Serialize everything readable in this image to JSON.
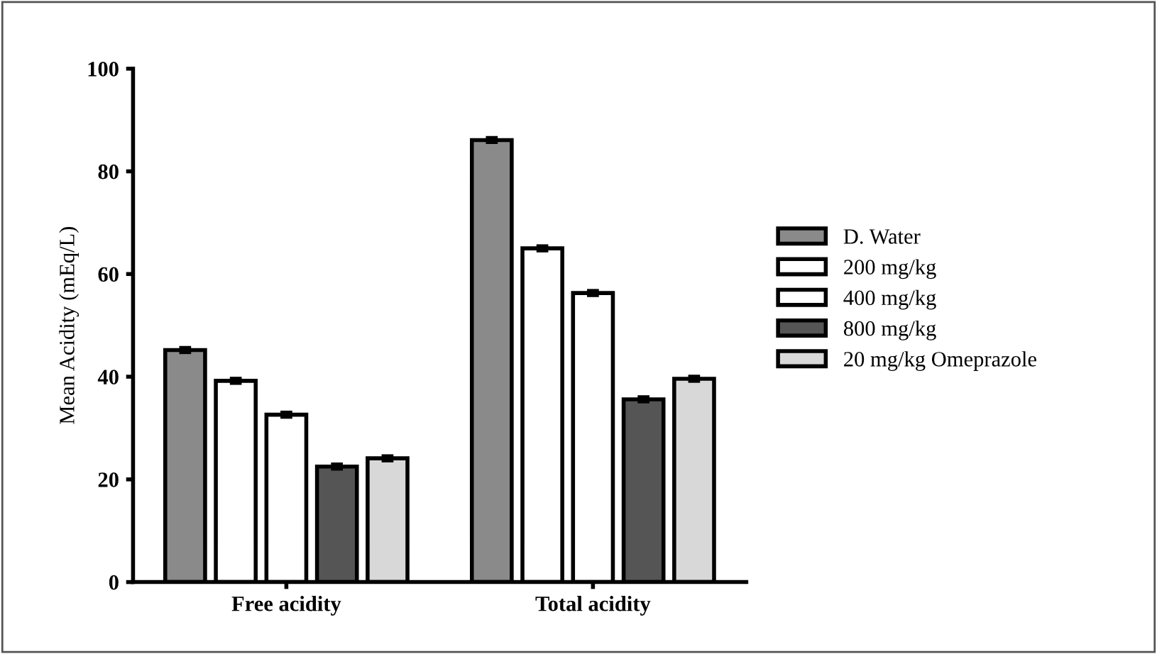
{
  "chart_data": {
    "type": "bar",
    "ylabel": "Mean Acidity (mEq/L)",
    "categories": [
      "Free acidity",
      "Total acidity"
    ],
    "series": [
      {
        "name": "D. Water",
        "color": "#8a8a8a",
        "values": [
          45.2,
          86.1
        ],
        "errors": [
          0.5,
          0.5
        ]
      },
      {
        "name": "200 mg/kg",
        "color": "#ffffff",
        "values": [
          39.2,
          65.0
        ],
        "errors": [
          0.5,
          0.5
        ]
      },
      {
        "name": "400 mg/kg",
        "color": "#ffffff",
        "values": [
          32.6,
          56.3
        ],
        "errors": [
          0.5,
          0.5
        ]
      },
      {
        "name": "800 mg/kg",
        "color": "#555555",
        "values": [
          22.5,
          35.6
        ],
        "errors": [
          0.5,
          0.5
        ]
      },
      {
        "name": "20 mg/kg Omeprazole",
        "color": "#d8d8d8",
        "values": [
          24.1,
          39.6
        ],
        "errors": [
          0.5,
          0.5
        ]
      }
    ],
    "ylim": [
      0,
      100
    ],
    "yticks": [
      0,
      20,
      40,
      60,
      80,
      100
    ],
    "grid": false,
    "legend": "right"
  }
}
